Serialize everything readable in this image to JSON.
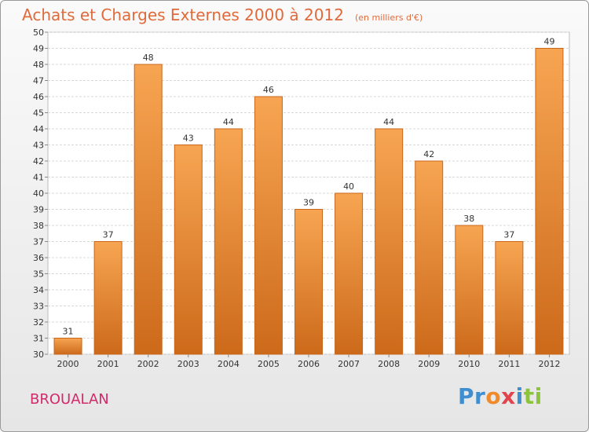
{
  "header": {
    "title": "Achats et Charges Externes 2000 à 2012",
    "subtitle": "(en milliers d'€)"
  },
  "footer": {
    "commune": "BROUALAN",
    "logo_letters": [
      {
        "ch": "P",
        "color": "#3f8fd0"
      },
      {
        "ch": "r",
        "color": "#3f8fd0"
      },
      {
        "ch": "o",
        "color": "#f08a2a"
      },
      {
        "ch": "x",
        "color": "#e0454d"
      },
      {
        "ch": "i",
        "color": "#3f8fd0"
      },
      {
        "ch": "t",
        "color": "#8cc43c"
      },
      {
        "ch": "i",
        "color": "#8cc43c"
      }
    ]
  },
  "chart_data": {
    "type": "bar",
    "categories": [
      "2000",
      "2001",
      "2002",
      "2003",
      "2004",
      "2005",
      "2006",
      "2007",
      "2008",
      "2009",
      "2010",
      "2011",
      "2012"
    ],
    "values": [
      31,
      37,
      48,
      43,
      44,
      46,
      39,
      40,
      44,
      42,
      38,
      37,
      49
    ],
    "data_labels": [
      "31",
      "37",
      "48",
      "43",
      "44",
      "46",
      "39",
      "40",
      "44",
      "42",
      "38",
      "37",
      "49"
    ],
    "yticks": [
      30,
      31,
      32,
      33,
      34,
      35,
      36,
      37,
      38,
      39,
      40,
      41,
      42,
      43,
      44,
      45,
      46,
      47,
      48,
      49,
      50
    ],
    "ylim": [
      30,
      50
    ],
    "grid": true,
    "bar_color_top": "#f7a552",
    "bar_color_bottom": "#cc6a1a",
    "bar_edge": "#c8661c"
  }
}
